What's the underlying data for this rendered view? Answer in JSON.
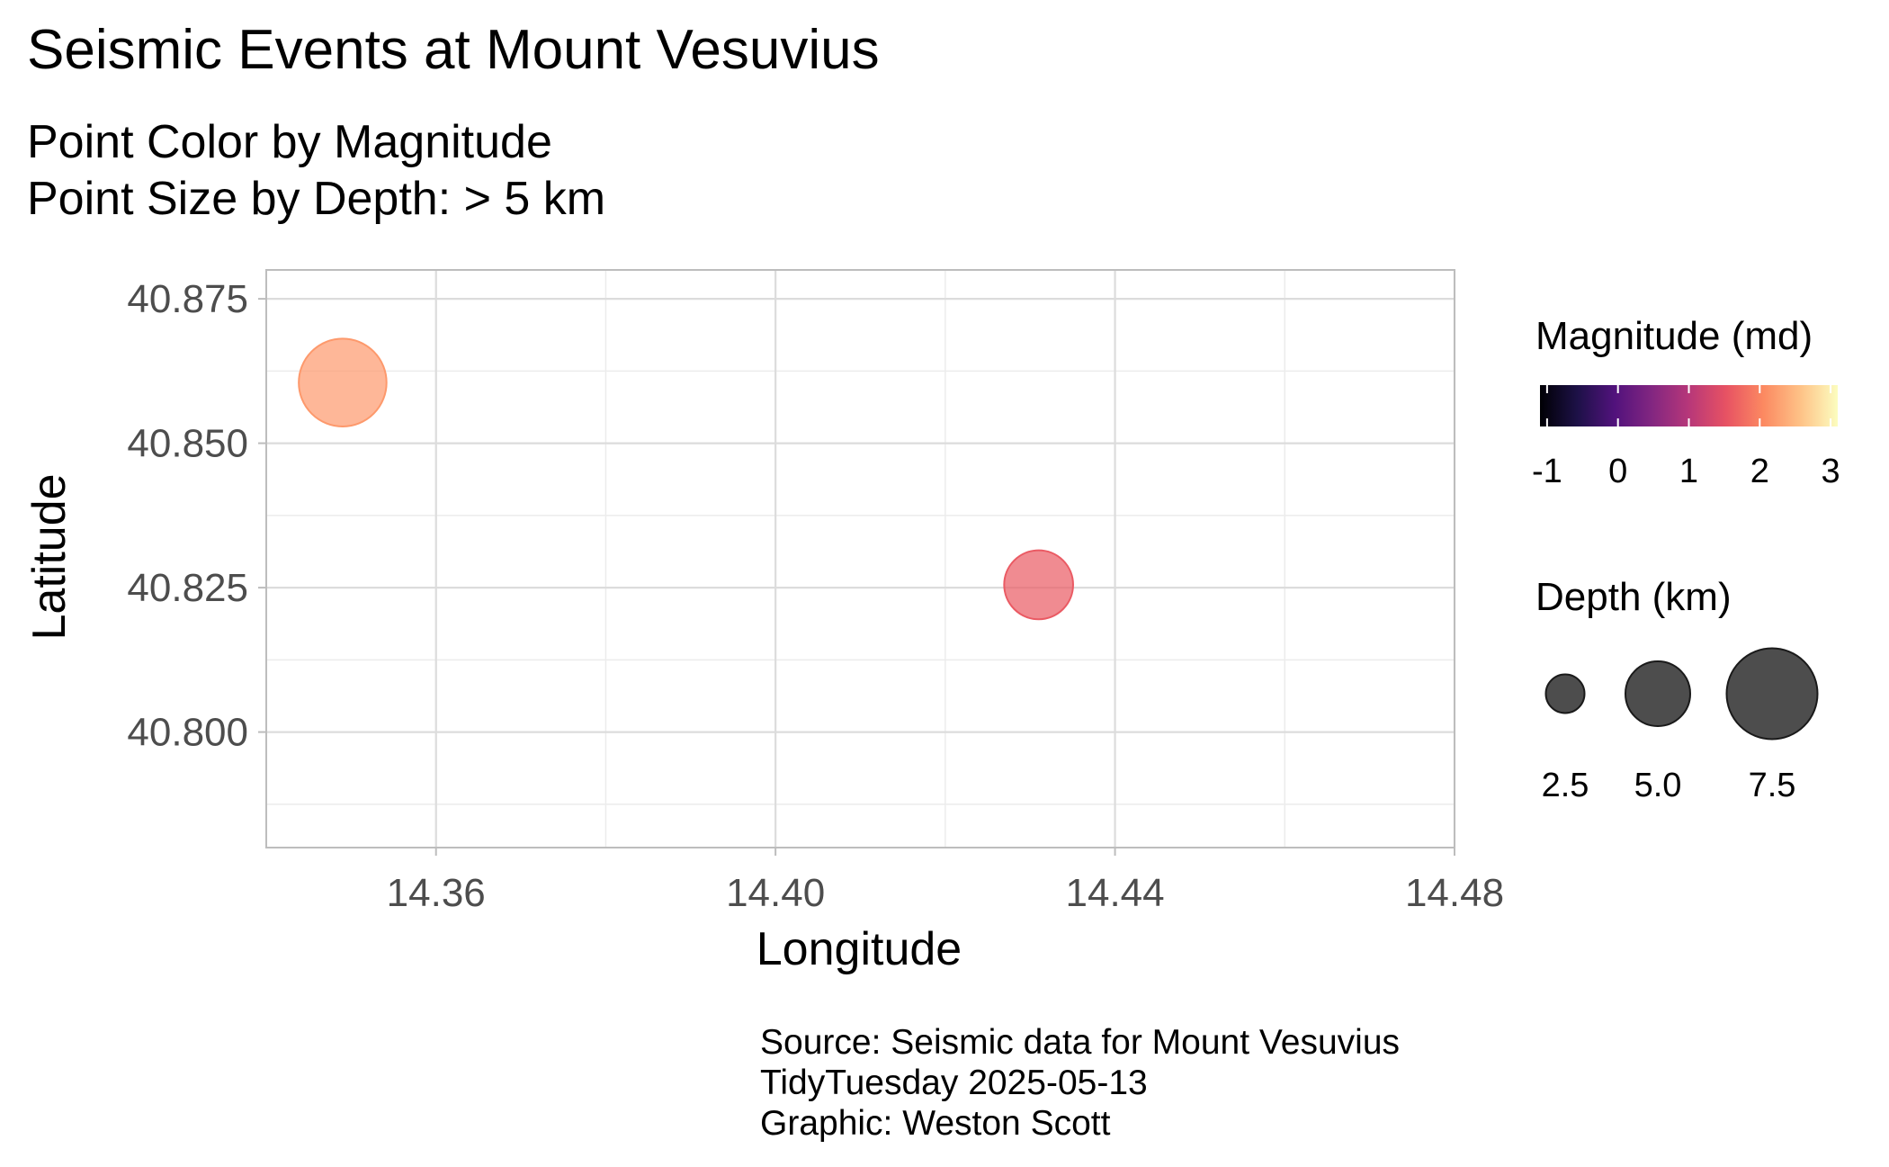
{
  "chart_data": {
    "type": "scatter",
    "title": "Seismic Events at Mount Vesuvius",
    "subtitle_lines": [
      "Point Color by Magnitude",
      "Point Size by Depth: > 5 km"
    ],
    "xlabel": "Longitude",
    "ylabel": "Latitude",
    "xlim": [
      14.34,
      14.48
    ],
    "ylim": [
      40.78,
      40.88
    ],
    "x_ticks": [
      14.36,
      14.4,
      14.44,
      14.48
    ],
    "x_tick_labels": [
      "14.36",
      "14.40",
      "14.44",
      "14.48"
    ],
    "y_ticks": [
      40.8,
      40.825,
      40.85,
      40.875
    ],
    "y_tick_labels": [
      "40.800",
      "40.825",
      "40.850",
      "40.875"
    ],
    "grid": true,
    "points": [
      {
        "x": 14.349,
        "y": 40.8605,
        "magnitude": 2.2,
        "depth": 7.2
      },
      {
        "x": 14.431,
        "y": 40.8255,
        "magnitude": 1.6,
        "depth": 5.4
      }
    ],
    "color_legend": {
      "title": "Magnitude (md)",
      "range": [
        -1.1,
        3.1
      ],
      "ticks": [
        -1,
        0,
        1,
        2,
        3
      ],
      "tick_labels": [
        "-1",
        "0",
        "1",
        "2",
        "3"
      ],
      "colors": [
        "#000004",
        "#1d1147",
        "#51127c",
        "#822681",
        "#b73779",
        "#e75263",
        "#fc8961",
        "#fec287",
        "#fcfdbf"
      ]
    },
    "size_legend": {
      "title": "Depth (km)",
      "values": [
        2.5,
        5.0,
        7.5
      ],
      "labels": [
        "2.5",
        "5.0",
        "7.5"
      ],
      "fill": "#3a3a3a"
    },
    "caption_lines": [
      "Source: Seismic data for Mount Vesuvius",
      "TidyTuesday 2025-05-13",
      "Graphic: Weston Scott"
    ]
  }
}
